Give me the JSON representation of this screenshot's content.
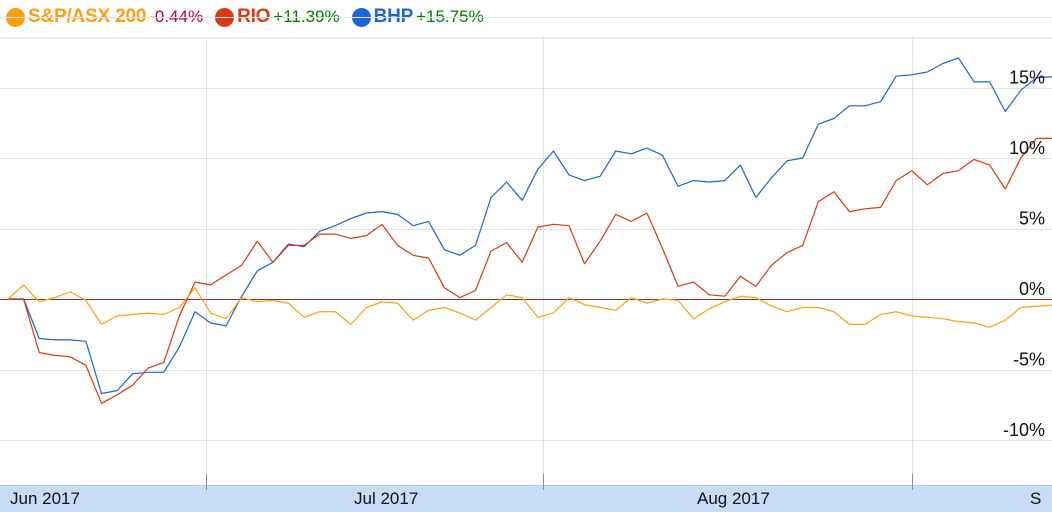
{
  "legend": [
    {
      "name": "S&P/ASX 200",
      "change": "-0.44%",
      "color": "#ff9e0f",
      "change_color": "#c0003a"
    },
    {
      "name": "RIO",
      "change": "+11.39%",
      "color": "#dc3912",
      "change_color": "#008000"
    },
    {
      "name": "BHP",
      "change": "+15.75%",
      "color": "#1a66d6",
      "change_color": "#008000"
    }
  ],
  "chart_data": {
    "type": "line",
    "y_unit": "%",
    "ylim": [
      -14,
      21
    ],
    "y_ticks": [
      {
        "value": 15,
        "label": "15%"
      },
      {
        "value": 10,
        "label": "10%"
      },
      {
        "value": 5,
        "label": "5%"
      },
      {
        "value": 0,
        "label": "0%"
      },
      {
        "value": -5,
        "label": "-5%"
      },
      {
        "value": -10,
        "label": "-10%"
      }
    ],
    "x_labels": [
      "Jun 2017",
      "Jul 2017",
      "Aug 2017",
      "S"
    ],
    "grid": true,
    "x": [
      "2017-05-29",
      "2017-05-30",
      "2017-05-31",
      "2017-06-01",
      "2017-06-02",
      "2017-06-05",
      "2017-06-06",
      "2017-06-07",
      "2017-06-08",
      "2017-06-09",
      "2017-06-13",
      "2017-06-14",
      "2017-06-15",
      "2017-06-16",
      "2017-06-19",
      "2017-06-20",
      "2017-06-21",
      "2017-06-22",
      "2017-06-23",
      "2017-06-26",
      "2017-06-27",
      "2017-06-28",
      "2017-06-29",
      "2017-06-30",
      "2017-07-03",
      "2017-07-04",
      "2017-07-05",
      "2017-07-06",
      "2017-07-07",
      "2017-07-10",
      "2017-07-11",
      "2017-07-12",
      "2017-07-13",
      "2017-07-14",
      "2017-07-17",
      "2017-07-18",
      "2017-07-19",
      "2017-07-20",
      "2017-07-21",
      "2017-07-24",
      "2017-07-25",
      "2017-07-26",
      "2017-07-27",
      "2017-07-28",
      "2017-07-31",
      "2017-08-01",
      "2017-08-02",
      "2017-08-03",
      "2017-08-04",
      "2017-08-07",
      "2017-08-08",
      "2017-08-09",
      "2017-08-10",
      "2017-08-11",
      "2017-08-14",
      "2017-08-15",
      "2017-08-16",
      "2017-08-17",
      "2017-08-18",
      "2017-08-21",
      "2017-08-22",
      "2017-08-23",
      "2017-08-24",
      "2017-08-25",
      "2017-08-28",
      "2017-08-29",
      "2017-08-30",
      "2017-08-31"
    ],
    "series": [
      {
        "name": "BHP",
        "color": "#1a66d6",
        "values": [
          0,
          0,
          -2.8,
          -2.9,
          -2.9,
          -3,
          -6.7,
          -6.5,
          -5.3,
          -5.2,
          -5.2,
          -3.4,
          -0.9,
          -1.7,
          -1.9,
          0.2,
          2,
          2.6,
          3.9,
          3.7,
          4.8,
          5.2,
          5.7,
          6.1,
          6.2,
          6,
          5.2,
          5.5,
          3.5,
          3.1,
          3.8,
          7.2,
          8.3,
          7,
          9.2,
          10.5,
          8.8,
          8.4,
          8.7,
          10.5,
          10.3,
          10.7,
          10.2,
          8,
          8.4,
          8.3,
          8.4,
          9.5,
          7.2,
          8.6,
          9.8,
          10,
          12.4,
          12.8,
          13.7,
          13.7,
          14,
          15.8,
          15.9,
          16.1,
          16.7,
          17.1,
          15.4,
          15.4,
          13.3,
          14.8,
          15.7,
          15.75
        ]
      },
      {
        "name": "RIO",
        "color": "#dc3912",
        "values": [
          0,
          0,
          -3.8,
          -4,
          -4.1,
          -4.7,
          -7.4,
          -6.8,
          -6.1,
          -4.9,
          -4.5,
          -1.2,
          1.2,
          1,
          1.7,
          2.4,
          4.1,
          2.6,
          3.8,
          3.8,
          4.6,
          4.6,
          4.3,
          4.5,
          5.3,
          3.8,
          3.1,
          2.9,
          0.8,
          0.1,
          0.6,
          3.4,
          4,
          2.6,
          5.1,
          5.3,
          5.2,
          2.5,
          4.1,
          6,
          5.5,
          6.1,
          3.6,
          0.9,
          1.2,
          0.3,
          0.2,
          1.6,
          0.9,
          2.4,
          3.3,
          3.8,
          6.9,
          7.6,
          6.2,
          6.4,
          6.5,
          8.4,
          9.1,
          8.1,
          8.9,
          9.1,
          9.9,
          9.5,
          7.8,
          10,
          11.39,
          11.39
        ]
      },
      {
        "name": "S&P/ASX 200",
        "color": "#ff9e0f",
        "values": [
          0,
          1,
          -0.2,
          0.1,
          0.5,
          -0.1,
          -1.8,
          -1.2,
          -1.1,
          -1,
          -1.1,
          -0.6,
          0.8,
          -1,
          -1.4,
          0.1,
          -0.2,
          -0.1,
          -0.3,
          -1.3,
          -0.9,
          -0.9,
          -1.8,
          -0.6,
          -0.2,
          -0.3,
          -1.5,
          -0.8,
          -0.6,
          -1,
          -1.5,
          -0.6,
          0.3,
          0.1,
          -1.3,
          -1,
          0.1,
          -0.4,
          -0.6,
          -0.8,
          0.1,
          -0.3,
          0,
          -0.1,
          -1.4,
          -0.7,
          -0.2,
          0.2,
          0.1,
          -0.5,
          -0.9,
          -0.6,
          -0.6,
          -0.9,
          -1.8,
          -1.8,
          -1.1,
          -0.9,
          -1.2,
          -1.3,
          -1.4,
          -1.6,
          -1.7,
          -2,
          -1.5,
          -0.6,
          -0.5,
          -0.44
        ]
      }
    ]
  }
}
